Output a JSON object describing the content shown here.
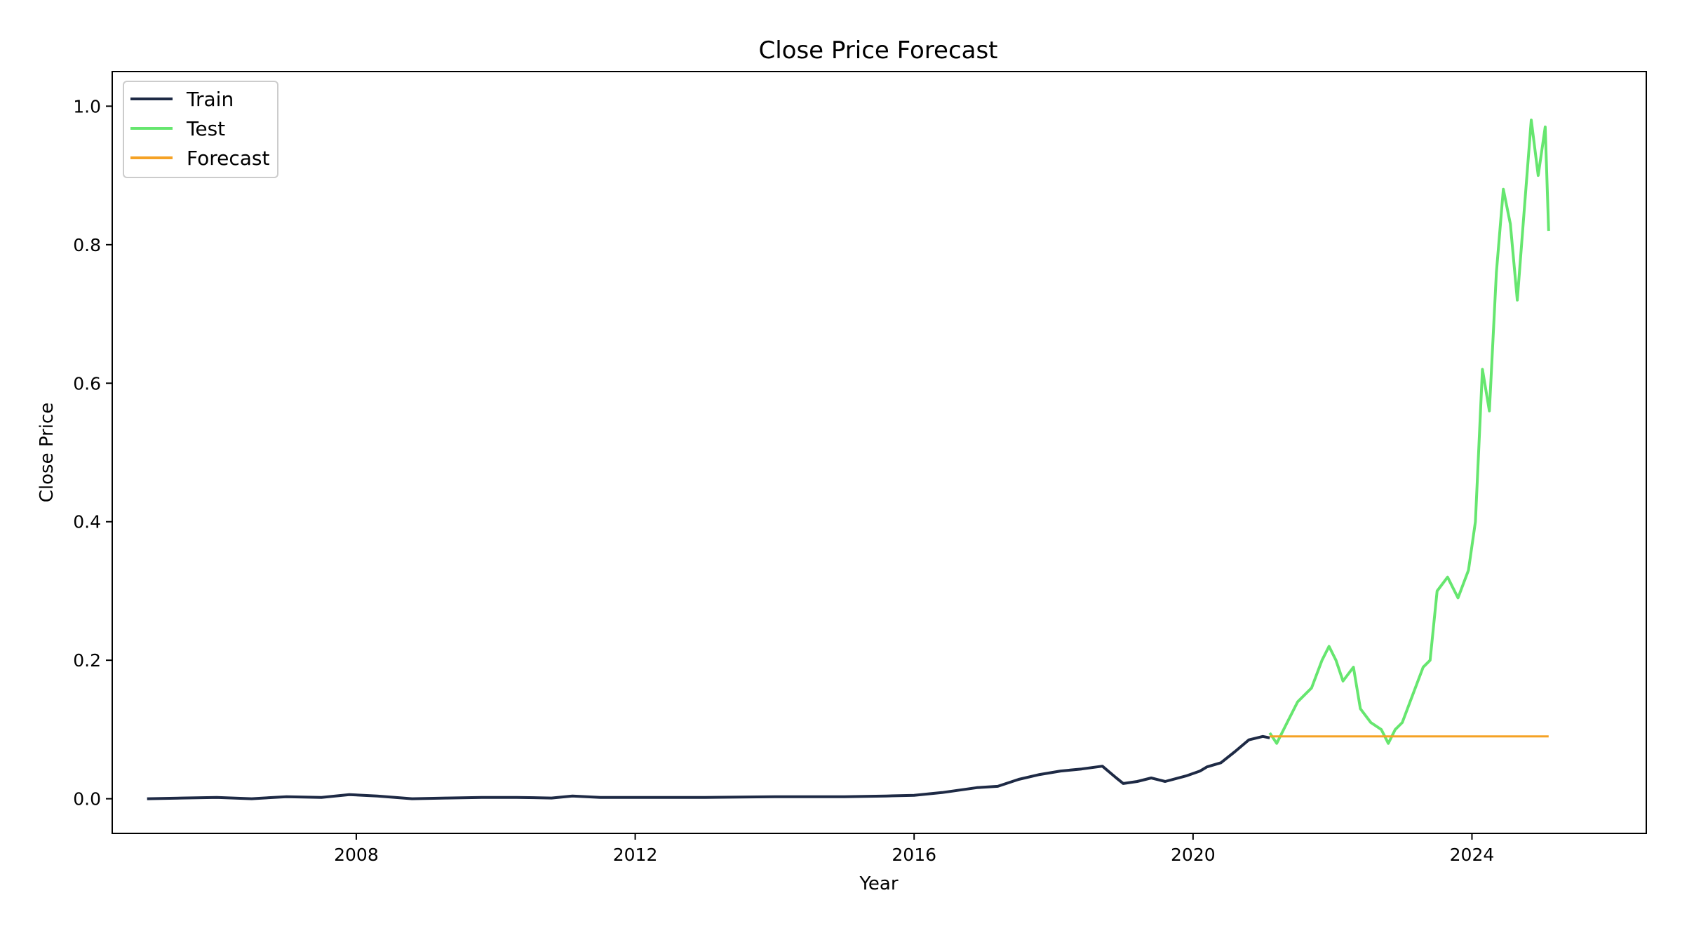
{
  "chart_data": {
    "type": "line",
    "title": "Close Price Forecast",
    "xlabel": "Year",
    "ylabel": "Close Price",
    "xlim": [
      2004.5,
      2026.5
    ],
    "ylim": [
      -0.05,
      1.05
    ],
    "xticks": [
      2008,
      2012,
      2016,
      2020,
      2024
    ],
    "xtick_labels": [
      "2008",
      "2012",
      "2016",
      "2020",
      "2024"
    ],
    "yticks": [
      0.0,
      0.2,
      0.4,
      0.6,
      0.8,
      1.0
    ],
    "ytick_labels": [
      "0.0",
      "0.2",
      "0.4",
      "0.6",
      "0.8",
      "1.0"
    ],
    "grid": false,
    "legend_position": "top-left",
    "series": [
      {
        "name": "Train",
        "color": "#1e2a45",
        "x": [
          2005.0,
          2005.5,
          2006.0,
          2006.5,
          2007.0,
          2007.5,
          2007.9,
          2008.3,
          2008.8,
          2009.3,
          2009.8,
          2010.3,
          2010.8,
          2011.1,
          2011.5,
          2012.0,
          2013.0,
          2014.0,
          2015.0,
          2015.6,
          2016.0,
          2016.4,
          2016.9,
          2017.2,
          2017.5,
          2017.8,
          2018.1,
          2018.4,
          2018.7,
          2018.9,
          2019.0,
          2019.2,
          2019.4,
          2019.6,
          2019.9,
          2020.1,
          2020.2,
          2020.4,
          2020.6,
          2020.8,
          2021.0,
          2021.1
        ],
        "y": [
          0.0,
          0.001,
          0.002,
          0.0,
          0.003,
          0.002,
          0.006,
          0.004,
          0.0,
          0.001,
          0.002,
          0.002,
          0.001,
          0.004,
          0.002,
          0.002,
          0.002,
          0.003,
          0.003,
          0.004,
          0.005,
          0.009,
          0.016,
          0.018,
          0.028,
          0.035,
          0.04,
          0.043,
          0.047,
          0.03,
          0.022,
          0.025,
          0.03,
          0.025,
          0.033,
          0.04,
          0.046,
          0.052,
          0.068,
          0.085,
          0.09,
          0.088
        ]
      },
      {
        "name": "Test",
        "color": "#66e66f",
        "x": [
          2021.1,
          2021.2,
          2021.35,
          2021.5,
          2021.7,
          2021.85,
          2021.95,
          2022.05,
          2022.15,
          2022.3,
          2022.4,
          2022.55,
          2022.7,
          2022.8,
          2022.9,
          2023.0,
          2023.15,
          2023.3,
          2023.4,
          2023.5,
          2023.65,
          2023.8,
          2023.95,
          2024.05,
          2024.15,
          2024.25,
          2024.35,
          2024.45,
          2024.55,
          2024.65,
          2024.75,
          2024.85,
          2024.95,
          2025.05,
          2025.1
        ],
        "y": [
          0.095,
          0.08,
          0.11,
          0.14,
          0.16,
          0.2,
          0.22,
          0.2,
          0.17,
          0.19,
          0.13,
          0.11,
          0.1,
          0.08,
          0.1,
          0.11,
          0.15,
          0.19,
          0.2,
          0.3,
          0.32,
          0.29,
          0.33,
          0.4,
          0.62,
          0.56,
          0.76,
          0.88,
          0.83,
          0.72,
          0.85,
          0.98,
          0.9,
          0.97,
          0.82
        ]
      },
      {
        "name": "Forecast",
        "color": "#f5a225",
        "x": [
          2021.1,
          2025.1
        ],
        "y": [
          0.09,
          0.09
        ]
      }
    ]
  }
}
